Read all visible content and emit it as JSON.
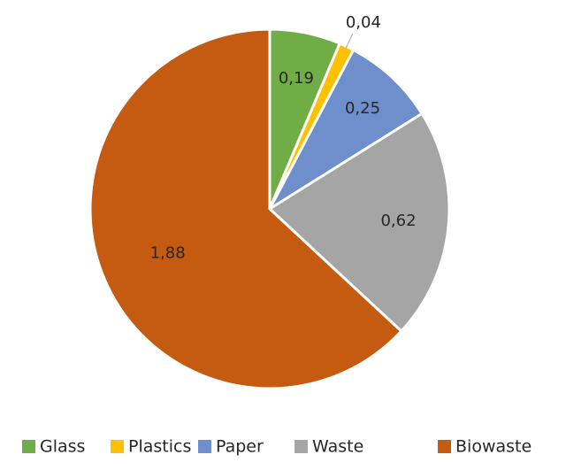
{
  "chart_data": {
    "type": "pie",
    "categories": [
      "Glass",
      "Plastics",
      "Paper",
      "Waste",
      "Biowaste"
    ],
    "values": [
      0.19,
      0.04,
      0.25,
      0.62,
      1.88
    ],
    "value_labels": [
      "0,19",
      "0,04",
      "0,25",
      "0,62",
      "1,88"
    ],
    "colors": [
      "#70AD47",
      "#FFC000",
      "#6E8FCB",
      "#A5A5A5",
      "#C55A11"
    ],
    "start_angle_deg": 0,
    "direction": "clockwise",
    "legend_position": "bottom",
    "title": ""
  }
}
